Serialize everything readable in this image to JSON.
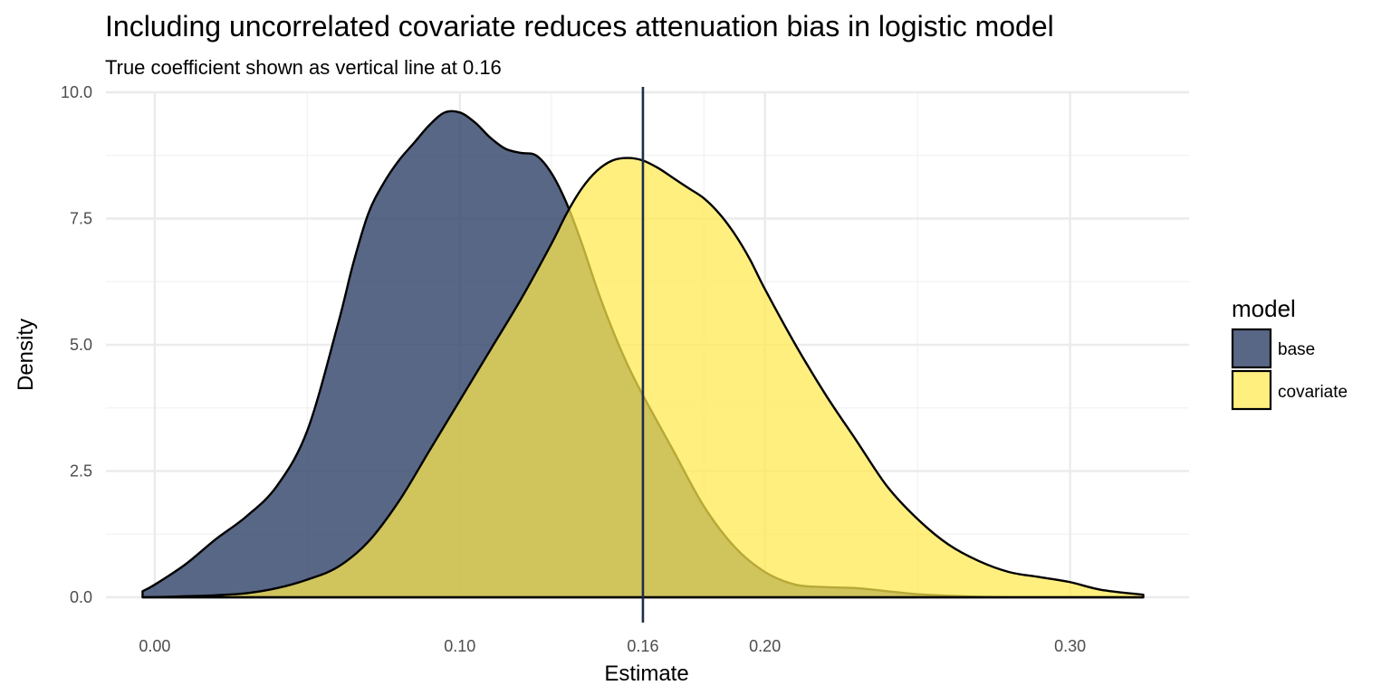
{
  "chart_data": {
    "type": "area",
    "title": "Including uncorrelated covariate reduces attenuation bias in logistic model",
    "subtitle": "True coefficient shown as vertical line at 0.16",
    "xlabel": "Estimate",
    "ylabel": "Density",
    "xlim": [
      -0.016,
      0.339
    ],
    "ylim": [
      0,
      10
    ],
    "x_ticks": [
      "0.00",
      "0.10",
      "0.16",
      "0.20",
      "0.30"
    ],
    "x_tick_values": [
      0.0,
      0.1,
      0.16,
      0.2,
      0.3
    ],
    "y_ticks": [
      "0.0",
      "2.5",
      "5.0",
      "7.5",
      "10.0"
    ],
    "y_tick_values": [
      0.0,
      2.5,
      5.0,
      7.5,
      10.0
    ],
    "x_minor_values": [
      0.05,
      0.13,
      0.18,
      0.25
    ],
    "y_minor_values": [
      1.25,
      3.75,
      6.25,
      8.75
    ],
    "grid": true,
    "vline": {
      "x": 0.16,
      "color": "#1f2d4a"
    },
    "legend": {
      "title": "model",
      "placement": "right"
    },
    "series": [
      {
        "name": "base",
        "color": "#33466a",
        "x": [
          -0.004,
          0.0,
          0.01,
          0.02,
          0.03,
          0.04,
          0.05,
          0.06,
          0.065,
          0.07,
          0.075,
          0.08,
          0.085,
          0.09,
          0.095,
          0.1,
          0.105,
          0.11,
          0.115,
          0.12,
          0.125,
          0.13,
          0.135,
          0.14,
          0.145,
          0.15,
          0.155,
          0.16,
          0.17,
          0.18,
          0.19,
          0.2,
          0.21,
          0.22,
          0.23,
          0.24,
          0.25,
          0.26,
          0.27,
          0.28,
          0.29,
          0.3,
          0.31,
          0.324
        ],
        "y": [
          0.12,
          0.25,
          0.65,
          1.15,
          1.6,
          2.2,
          3.3,
          5.4,
          6.6,
          7.6,
          8.2,
          8.65,
          9.0,
          9.35,
          9.6,
          9.6,
          9.4,
          9.1,
          8.88,
          8.8,
          8.75,
          8.4,
          7.8,
          7.0,
          6.1,
          5.3,
          4.6,
          4.0,
          2.9,
          1.8,
          1.0,
          0.5,
          0.25,
          0.2,
          0.18,
          0.12,
          0.06,
          0.03,
          0.01,
          0.0,
          0.0,
          0.0,
          0.0,
          0.0
        ]
      },
      {
        "name": "covariate",
        "color": "#ffe94d",
        "x": [
          -0.004,
          0.0,
          0.01,
          0.02,
          0.03,
          0.04,
          0.05,
          0.06,
          0.07,
          0.08,
          0.09,
          0.1,
          0.11,
          0.12,
          0.13,
          0.135,
          0.14,
          0.145,
          0.15,
          0.155,
          0.16,
          0.165,
          0.17,
          0.175,
          0.18,
          0.185,
          0.19,
          0.195,
          0.2,
          0.21,
          0.22,
          0.23,
          0.24,
          0.25,
          0.26,
          0.27,
          0.28,
          0.29,
          0.3,
          0.31,
          0.324
        ],
        "y": [
          0.0,
          0.0,
          0.02,
          0.04,
          0.08,
          0.18,
          0.35,
          0.6,
          1.1,
          1.9,
          2.9,
          3.9,
          4.9,
          5.9,
          7.0,
          7.6,
          8.1,
          8.45,
          8.65,
          8.7,
          8.65,
          8.5,
          8.3,
          8.1,
          7.9,
          7.6,
          7.2,
          6.7,
          6.1,
          5.0,
          4.0,
          3.1,
          2.2,
          1.55,
          1.05,
          0.72,
          0.5,
          0.4,
          0.3,
          0.15,
          0.05
        ]
      }
    ]
  }
}
